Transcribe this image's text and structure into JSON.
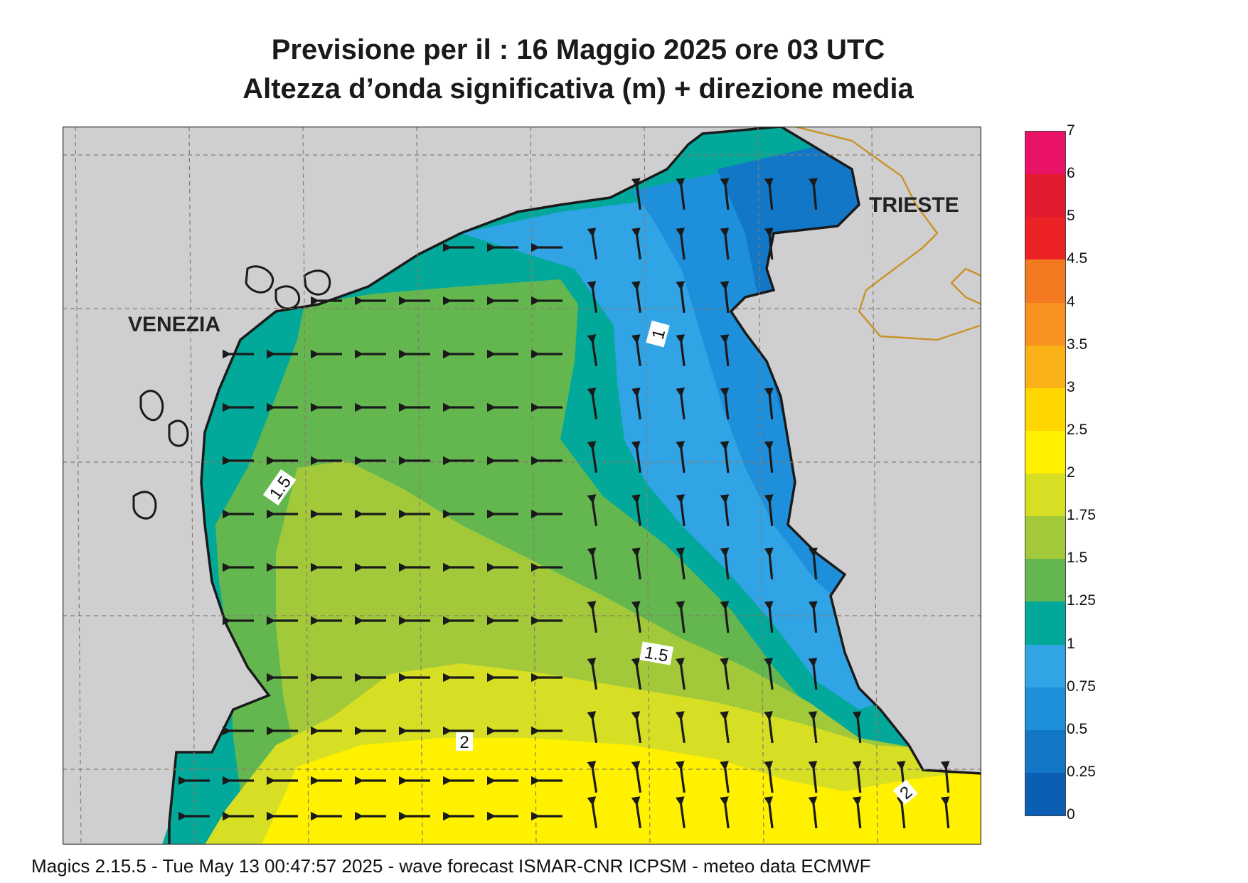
{
  "title_line1": "Previsione per il  :  16   Maggio  2025   ore 03 UTC",
  "title_line2": "Altezza d’onda significativa (m) + direzione media",
  "footer": "Magics 2.15.5 - Tue May 13 00:47:57 2025 - wave forecast  ISMAR-CNR  ICPSM - meteo data   ECMWF",
  "cities": [
    {
      "name": "VENEZIA"
    },
    {
      "name": "TRIESTE"
    }
  ],
  "contour_labels": [
    "1",
    "1.5",
    "1.5",
    "2",
    "2"
  ],
  "legend": {
    "ticks": [
      "0",
      "0.25",
      "0.5",
      "0.75",
      "1",
      "1.25",
      "1.5",
      "1.75",
      "2",
      "2.5",
      "3",
      "3.5",
      "4",
      "4.5",
      "5",
      "6",
      "7"
    ],
    "colors": [
      "#0a5fb4",
      "#1377c8",
      "#1e8fda",
      "#31a4e6",
      "#02a99a",
      "#64b74f",
      "#a2c93a",
      "#d6df24",
      "#fff100",
      "#ffd600",
      "#fbb118",
      "#f8931f",
      "#f37a21",
      "#ec2227",
      "#e31b2e",
      "#ea1266"
    ]
  },
  "colors": {
    "land": "#cfcfd1",
    "sea_background": "#d9d9d9",
    "border": "#c8942a",
    "arrows": "#1a1a1a"
  }
}
